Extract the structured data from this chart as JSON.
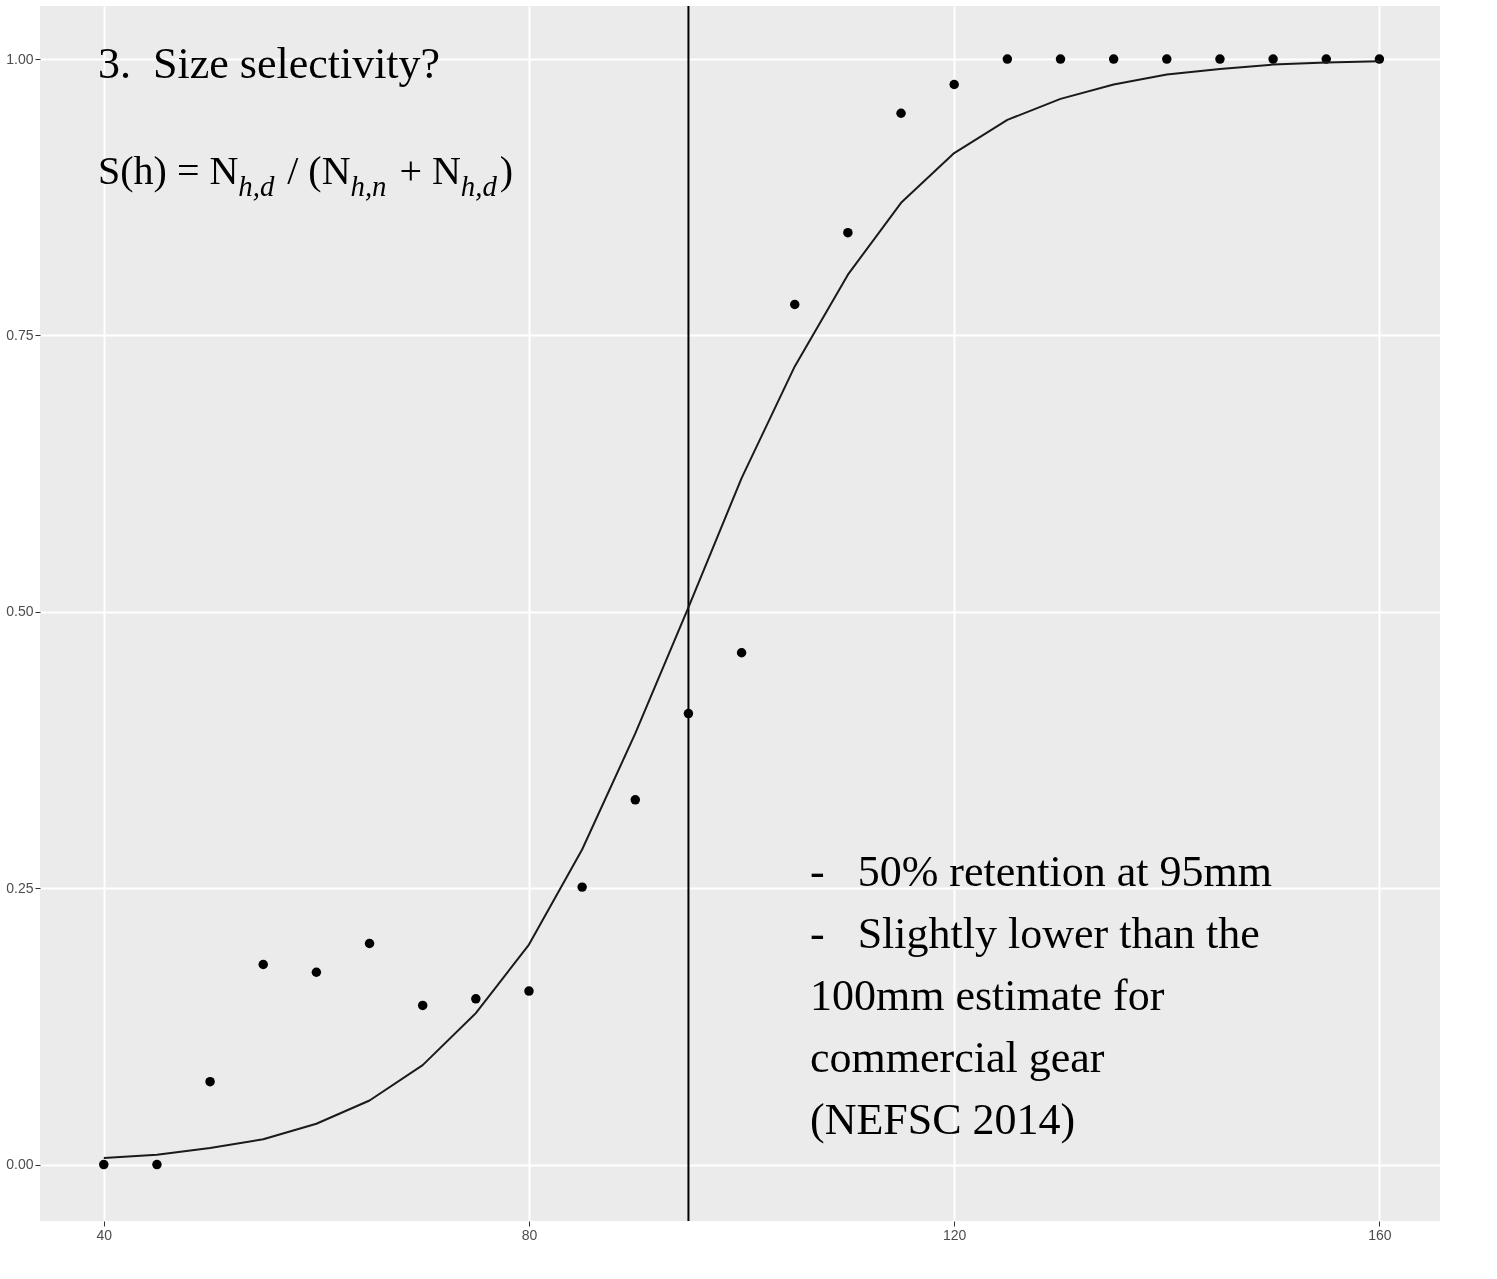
{
  "chart_data": {
    "type": "scatter",
    "x": [
      40,
      45,
      50,
      55,
      60,
      65,
      70,
      75,
      80,
      85,
      90,
      95,
      100,
      105,
      110,
      115,
      120,
      125,
      130,
      135,
      140,
      145,
      150,
      155,
      160
    ],
    "series": [
      {
        "color": "#000000",
        "values": [
          0,
          0,
          0.075,
          0.181,
          0.174,
          0.2,
          0.144,
          0.15,
          0.157,
          0.251,
          0.33,
          0.408,
          0.463,
          0.778,
          0.843,
          0.951,
          0.977,
          1,
          1,
          1,
          1,
          1,
          1,
          1,
          1
        ]
      },
      {
        "type": "line",
        "marker": "none",
        "color": "#1a1a1a",
        "values": [
          0.006,
          0.009,
          0.015,
          0.023,
          0.037,
          0.058,
          0.09,
          0.137,
          0.199,
          0.285,
          0.39,
          0.504,
          0.621,
          0.722,
          0.805,
          0.87,
          0.915,
          0.945,
          0.964,
          0.977,
          0.986,
          0.991,
          0.995,
          0.997,
          0.998
        ]
      }
    ],
    "xlim": [
      34,
      165.7
    ],
    "xticks": [
      40,
      80,
      120,
      160
    ],
    "ylim": [
      -0.051,
      1.048
    ],
    "yticks": [
      {
        "value": 0,
        "label": "0.00"
      },
      {
        "value": 0.25,
        "label": "0.25"
      },
      {
        "value": 0.5,
        "label": "0.50"
      },
      {
        "value": 0.75,
        "label": "0.75"
      },
      {
        "value": 1,
        "label": "1.00"
      }
    ],
    "ref_lines": [
      {
        "axis": "x",
        "value": 95,
        "color": "#000000"
      }
    ],
    "grid": true,
    "marker": "circle",
    "annotations": [
      "3.  Size selectivity?",
      "S(h) = N$_{h,d}$ / (N$_{h,n}$ + N$_{h,d}$)",
      "-   50% retention at 95mm",
      "-   Slightly lower than the\n     100mm estimate for\n     commercial gear\n     (NEFSC 2014)"
    ]
  }
}
